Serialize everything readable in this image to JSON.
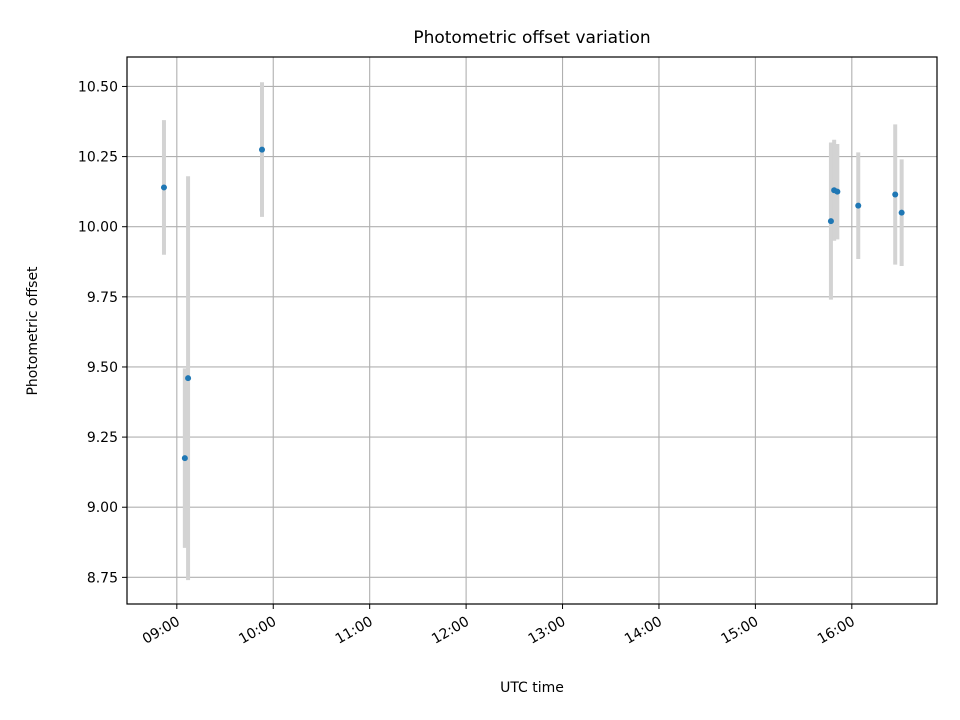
{
  "chart_data": {
    "type": "scatter",
    "title": "Photometric offset variation",
    "xlabel": "UTC time",
    "ylabel": "Photometric offset",
    "x_tick_labels": [
      "09:00",
      "10:00",
      "11:00",
      "12:00",
      "13:00",
      "14:00",
      "15:00",
      "16:00"
    ],
    "y_tick_labels": [
      "8.75",
      "9.00",
      "9.25",
      "9.50",
      "9.75",
      "10.00",
      "10.25",
      "10.50"
    ],
    "xlim": [
      "08:29",
      "16:53"
    ],
    "ylim": [
      8.655,
      10.605
    ],
    "grid": true,
    "colors": {
      "points": "#1f77b4",
      "error_bars": "#d3d3d3",
      "grid": "#b0b0b0"
    },
    "points": [
      {
        "x": "08:52",
        "y": 10.14,
        "yerr": 0.24
      },
      {
        "x": "09:05",
        "y": 9.175,
        "yerr": 0.32
      },
      {
        "x": "09:07",
        "y": 9.46,
        "yerr": 0.72
      },
      {
        "x": "09:53",
        "y": 10.275,
        "yerr": 0.24
      },
      {
        "x": "15:47",
        "y": 10.02,
        "yerr": 0.28
      },
      {
        "x": "15:49",
        "y": 10.13,
        "yerr": 0.18
      },
      {
        "x": "15:51",
        "y": 10.125,
        "yerr": 0.17
      },
      {
        "x": "16:04",
        "y": 10.075,
        "yerr": 0.19
      },
      {
        "x": "16:27",
        "y": 10.115,
        "yerr": 0.25
      },
      {
        "x": "16:31",
        "y": 10.05,
        "yerr": 0.19
      }
    ]
  }
}
